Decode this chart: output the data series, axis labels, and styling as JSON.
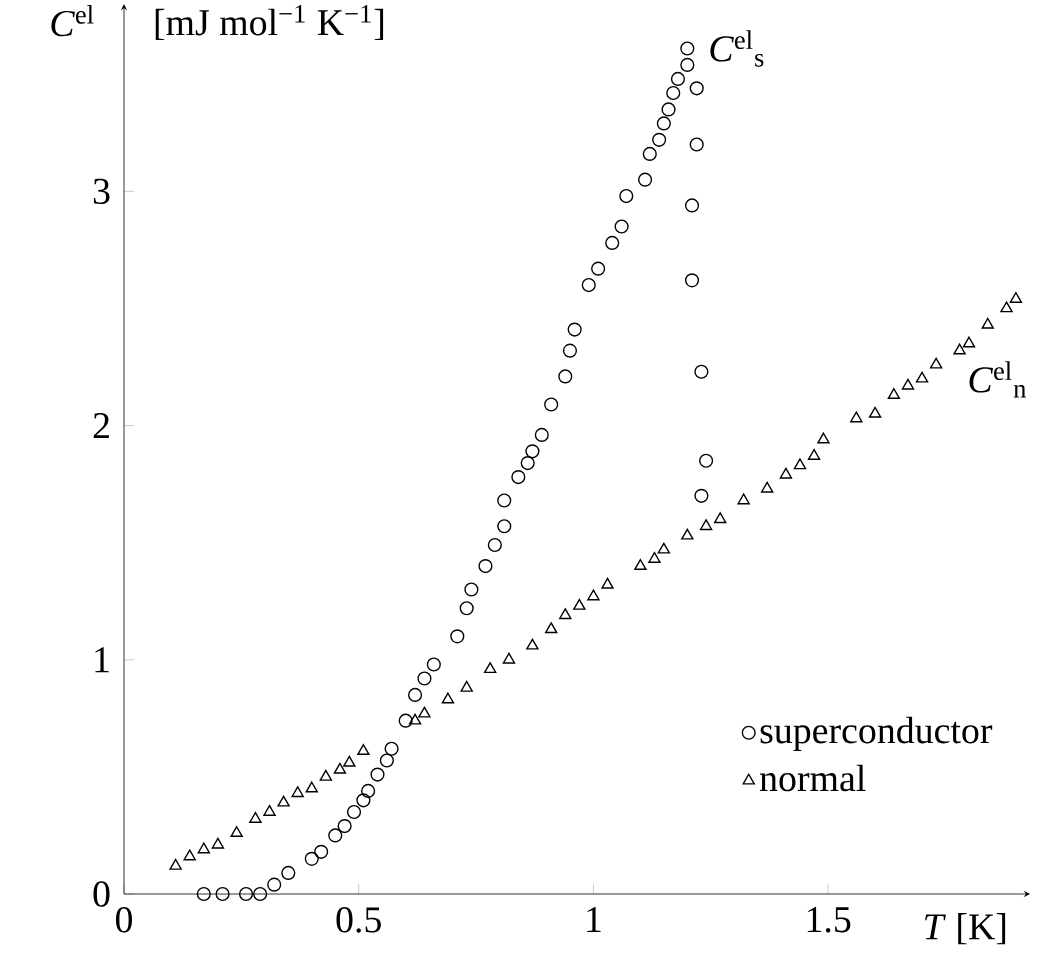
{
  "chart_data": {
    "type": "scatter",
    "xlabel": "*T* [K]",
    "ylabel": "*C*$^{el}$",
    "xlim": [
      0,
      1.93
    ],
    "ylim": [
      0,
      3.8
    ],
    "xticks": [
      0,
      0.5,
      1,
      1.5
    ],
    "yticks": [
      0,
      1,
      2,
      3
    ],
    "legend": "bottom right",
    "grid": false,
    "annotations": [
      "[mJ mol$^{−1}$ K$^{−1}$]",
      {
        "text": "*C*$^{el}$$_{s}$",
        "x": 1.2,
        "y": 3.61
      },
      {
        "text": "*C*$^{el}$$_{n}$",
        "x": 1.88,
        "y": 2.5
      }
    ],
    "series": [
      {
        "name": "superconductor",
        "color": "#000000",
        "marker": "circle",
        "x": [
          0.17,
          0.21,
          0.26,
          0.29,
          0.32,
          0.35,
          0.4,
          0.42,
          0.45,
          0.47,
          0.49,
          0.51,
          0.52,
          0.54,
          0.56,
          0.57,
          0.6,
          0.62,
          0.64,
          0.66,
          0.71,
          0.73,
          0.74,
          0.77,
          0.79,
          0.81,
          0.81,
          0.84,
          0.86,
          0.87,
          0.89,
          0.91,
          0.94,
          0.95,
          0.96,
          0.99,
          1.01,
          1.04,
          1.06,
          1.07,
          1.11,
          1.12,
          1.14,
          1.15,
          1.16,
          1.17,
          1.18,
          1.2,
          1.2,
          1.22,
          1.22,
          1.21,
          1.21,
          1.23,
          1.24,
          1.23
        ],
        "values": [
          0,
          0,
          0,
          0,
          0.04,
          0.09,
          0.15,
          0.18,
          0.25,
          0.29,
          0.35,
          0.4,
          0.44,
          0.51,
          0.57,
          0.62,
          0.74,
          0.85,
          0.92,
          0.98,
          1.1,
          1.22,
          1.3,
          1.4,
          1.49,
          1.57,
          1.68,
          1.78,
          1.84,
          1.89,
          1.96,
          2.09,
          2.21,
          2.32,
          2.41,
          2.6,
          2.67,
          2.78,
          2.85,
          2.98,
          3.05,
          3.16,
          3.22,
          3.29,
          3.35,
          3.42,
          3.48,
          3.54,
          3.61,
          3.44,
          3.2,
          2.94,
          2.62,
          2.23,
          1.85,
          1.7
        ]
      },
      {
        "name": "normal",
        "color": "#000000",
        "marker": "triangle",
        "x": [
          0.11,
          0.14,
          0.17,
          0.2,
          0.24,
          0.28,
          0.31,
          0.34,
          0.37,
          0.4,
          0.43,
          0.46,
          0.48,
          0.51,
          0.62,
          0.64,
          0.69,
          0.73,
          0.78,
          0.82,
          0.87,
          0.91,
          0.94,
          0.97,
          1.0,
          1.03,
          1.1,
          1.13,
          1.15,
          1.2,
          1.24,
          1.27,
          1.32,
          1.37,
          1.41,
          1.44,
          1.47,
          1.49,
          1.56,
          1.6,
          1.64,
          1.67,
          1.7,
          1.73,
          1.78,
          1.8,
          1.84,
          1.88,
          1.9
        ],
        "values": [
          0.12,
          0.16,
          0.19,
          0.21,
          0.26,
          0.32,
          0.35,
          0.39,
          0.43,
          0.45,
          0.5,
          0.53,
          0.56,
          0.61,
          0.74,
          0.77,
          0.83,
          0.88,
          0.96,
          1.0,
          1.06,
          1.13,
          1.19,
          1.23,
          1.27,
          1.32,
          1.4,
          1.43,
          1.47,
          1.53,
          1.57,
          1.6,
          1.68,
          1.73,
          1.79,
          1.83,
          1.87,
          1.94,
          2.03,
          2.05,
          2.13,
          2.17,
          2.2,
          2.26,
          2.32,
          2.35,
          2.43,
          2.5,
          2.54
        ]
      }
    ]
  }
}
